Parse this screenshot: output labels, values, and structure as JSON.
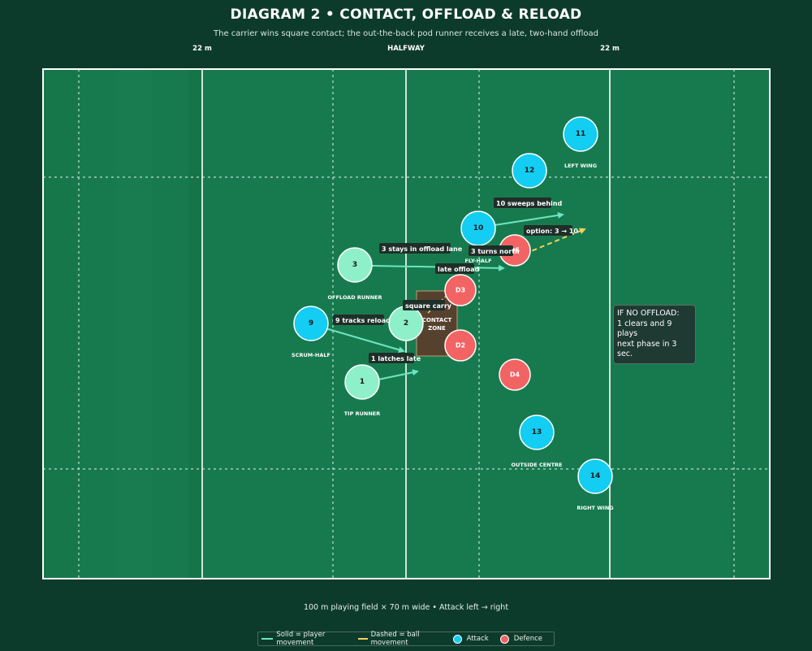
{
  "title": "DIAGRAM 2  •  CONTACT, OFFLOAD & RELOAD",
  "subtitle": "The carrier wins square contact; the out-the-back pod runner receives a late, two-hand offload",
  "field_labels": {
    "left_22": "22 m",
    "halfway": "HALFWAY",
    "right_22": "22 m"
  },
  "footer": "100 m playing field × 70 m wide  •  Attack left → right",
  "legend": {
    "solid": "Solid = player movement",
    "dashed": "Dashed = ball movement",
    "attack": "Attack",
    "defence": "Defence"
  },
  "colors": {
    "pitch": "#177a4e",
    "attack": "#13cdf2",
    "pod": "#8ef0c8",
    "defence": "#f26464",
    "ball_line": "#f5cf60",
    "run_line": "#6de5c0"
  },
  "contact_zone": {
    "label_line1": "CONTACT",
    "label_line2": "ZONE"
  },
  "players": {
    "p11": {
      "num": "11",
      "role": "LEFT WING"
    },
    "p12": {
      "num": "12",
      "role": ""
    },
    "p10": {
      "num": "10",
      "role": "FLY-HALF"
    },
    "p3": {
      "num": "3",
      "role": "OFFLOAD RUNNER"
    },
    "p9": {
      "num": "9",
      "role": "SCRUM-HALF"
    },
    "p2": {
      "num": "2",
      "role": ""
    },
    "p1": {
      "num": "1",
      "role": "TIP RUNNER"
    },
    "p13": {
      "num": "13",
      "role": "OUTSIDE CENTRE"
    },
    "p14": {
      "num": "14",
      "role": "RIGHT WING"
    },
    "d3": {
      "num": "D3"
    },
    "d2": {
      "num": "D2"
    },
    "d4": {
      "num": "D4"
    },
    "d5": {
      "num": "D5"
    }
  },
  "annotations": {
    "sweep": "10 sweeps behind",
    "option": "option: 3 → 10",
    "stays": "3 stays in offload lane",
    "turns": "3 turns north",
    "late_offload": "late offload",
    "square_carry": "square carry",
    "tracks": "9 tracks reload",
    "latches": "1 latches late"
  },
  "note": {
    "line1": "IF NO OFFLOAD:",
    "line2": "1 clears and 9 plays",
    "line3": "next phase in 3 sec."
  }
}
